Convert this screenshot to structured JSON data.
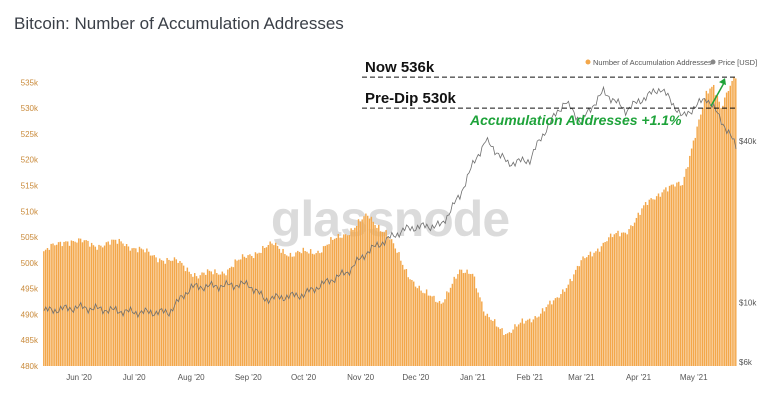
{
  "title": "Bitcoin: Number of Accumulation Addresses",
  "watermark": "glassnode",
  "legend": {
    "accumulation": "Number of Accumulation Addresses",
    "price": "Price [USD]",
    "accumulation_color": "#f3a74a",
    "price_color": "#888888"
  },
  "annotations": {
    "now": "Now 536k",
    "pre_dip": "Pre-Dip 530k",
    "change": "Accumulation Addresses +1.1%",
    "change_color": "#1ea33a"
  },
  "chart_data": {
    "type": "bar",
    "series": [
      {
        "name": "Number of Accumulation Addresses",
        "type": "bar",
        "axis": "left"
      },
      {
        "name": "Price [USD]",
        "type": "line",
        "axis": "right"
      }
    ],
    "x_range": [
      "2020-05-13",
      "2021-05-24"
    ],
    "x_ticks": [
      "Jun '20",
      "Jul '20",
      "Aug '20",
      "Sep '20",
      "Oct '20",
      "Nov '20",
      "Dec '20",
      "Jan '21",
      "Feb '21",
      "Mar '21",
      "Apr '21",
      "May '21"
    ],
    "y_left": {
      "range": [
        480000,
        537000
      ],
      "ticks": [
        "480k",
        "485k",
        "490k",
        "495k",
        "500k",
        "505k",
        "510k",
        "515k",
        "520k",
        "525k",
        "530k",
        "535k"
      ]
    },
    "y_right": {
      "scale": "log",
      "ticks": [
        "$6k",
        "$10k",
        "$40k"
      ]
    },
    "accumulation_points": [
      [
        "2020-05-13",
        502000
      ],
      [
        "2020-05-25",
        504500
      ],
      [
        "2020-06-10",
        503500
      ],
      [
        "2020-06-25",
        504000
      ],
      [
        "2020-07-10",
        501500
      ],
      [
        "2020-07-25",
        500000
      ],
      [
        "2020-08-05",
        497500
      ],
      [
        "2020-08-20",
        498500
      ],
      [
        "2020-09-01",
        501500
      ],
      [
        "2020-09-15",
        503500
      ],
      [
        "2020-09-25",
        501500
      ],
      [
        "2020-10-10",
        502500
      ],
      [
        "2020-10-25",
        506000
      ],
      [
        "2020-11-05",
        509000
      ],
      [
        "2020-11-15",
        506000
      ],
      [
        "2020-11-25",
        499000
      ],
      [
        "2020-12-05",
        494000
      ],
      [
        "2020-12-15",
        492500
      ],
      [
        "2020-12-25",
        498000
      ],
      [
        "2021-01-01",
        498500
      ],
      [
        "2021-01-08",
        489500
      ],
      [
        "2021-01-20",
        486500
      ],
      [
        "2021-02-01",
        489000
      ],
      [
        "2021-02-15",
        492500
      ],
      [
        "2021-03-01",
        500000
      ],
      [
        "2021-03-15",
        504500
      ],
      [
        "2021-03-25",
        506000
      ],
      [
        "2021-04-05",
        511000
      ],
      [
        "2021-04-15",
        514500
      ],
      [
        "2021-04-25",
        515000
      ],
      [
        "2021-05-01",
        524000
      ],
      [
        "2021-05-08",
        532500
      ],
      [
        "2021-05-12",
        534000
      ],
      [
        "2021-05-16",
        530500
      ],
      [
        "2021-05-20",
        534000
      ],
      [
        "2021-05-24",
        536000
      ]
    ],
    "price_points": [
      [
        "2020-05-13",
        9300
      ],
      [
        "2020-06-01",
        9600
      ],
      [
        "2020-07-01",
        9200
      ],
      [
        "2020-07-20",
        9200
      ],
      [
        "2020-08-01",
        11400
      ],
      [
        "2020-09-01",
        11700
      ],
      [
        "2020-09-10",
        10300
      ],
      [
        "2020-10-01",
        10700
      ],
      [
        "2020-10-25",
        13000
      ],
      [
        "2020-11-05",
        15500
      ],
      [
        "2020-11-25",
        18700
      ],
      [
        "2020-12-01",
        19100
      ],
      [
        "2020-12-15",
        19400
      ],
      [
        "2020-12-25",
        25000
      ],
      [
        "2021-01-08",
        40000
      ],
      [
        "2021-01-20",
        33000
      ],
      [
        "2021-02-01",
        34000
      ],
      [
        "2021-02-20",
        56000
      ],
      [
        "2021-03-01",
        47000
      ],
      [
        "2021-03-13",
        61000
      ],
      [
        "2021-03-25",
        52000
      ],
      [
        "2021-04-13",
        63000
      ],
      [
        "2021-04-25",
        49000
      ],
      [
        "2021-05-08",
        58000
      ],
      [
        "2021-05-15",
        49000
      ],
      [
        "2021-05-24",
        38000
      ]
    ],
    "reference_lines": [
      {
        "label": "Now 536k",
        "value": 536000
      },
      {
        "label": "Pre-Dip 530k",
        "value": 530000
      }
    ],
    "grid": false,
    "legend_position": "top-right"
  }
}
